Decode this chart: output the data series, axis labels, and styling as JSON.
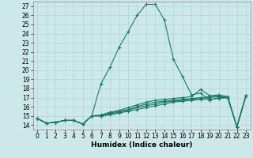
{
  "xlabel": "Humidex (Indice chaleur)",
  "xlim": [
    -0.5,
    23.5
  ],
  "ylim": [
    13.5,
    27.5
  ],
  "yticks": [
    14,
    15,
    16,
    17,
    18,
    19,
    20,
    21,
    22,
    23,
    24,
    25,
    26,
    27
  ],
  "xticks": [
    0,
    1,
    2,
    3,
    4,
    5,
    6,
    7,
    8,
    9,
    10,
    11,
    12,
    13,
    14,
    15,
    16,
    17,
    18,
    19,
    20,
    21,
    22,
    23
  ],
  "line_color": "#1a7a6a",
  "bg_color": "#cce8e8",
  "grid_color": "#b0d4d4",
  "series": [
    [
      14.7,
      14.2,
      14.3,
      14.5,
      14.5,
      14.1,
      15.0,
      18.5,
      20.3,
      22.5,
      24.2,
      26.0,
      27.2,
      27.2,
      25.5,
      21.2,
      19.3,
      17.3,
      17.5,
      16.7,
      17.0,
      17.0,
      13.8,
      17.2
    ],
    [
      14.7,
      14.2,
      14.3,
      14.5,
      14.5,
      14.1,
      15.0,
      15.0,
      15.1,
      15.3,
      15.5,
      15.7,
      15.9,
      16.1,
      16.3,
      16.5,
      16.6,
      16.7,
      16.8,
      16.8,
      16.9,
      17.0,
      13.8,
      17.2
    ],
    [
      14.7,
      14.2,
      14.3,
      14.5,
      14.5,
      14.1,
      15.0,
      15.0,
      15.2,
      15.4,
      15.6,
      15.9,
      16.1,
      16.3,
      16.5,
      16.6,
      16.7,
      16.8,
      16.9,
      17.0,
      17.1,
      17.0,
      13.8,
      17.2
    ],
    [
      14.7,
      14.2,
      14.3,
      14.5,
      14.5,
      14.1,
      15.0,
      15.0,
      15.3,
      15.5,
      15.7,
      16.0,
      16.3,
      16.5,
      16.6,
      16.7,
      16.8,
      16.9,
      17.0,
      17.1,
      17.2,
      17.0,
      13.8,
      17.2
    ],
    [
      14.7,
      14.2,
      14.3,
      14.5,
      14.5,
      14.1,
      15.0,
      15.1,
      15.4,
      15.6,
      15.9,
      16.2,
      16.5,
      16.7,
      16.8,
      16.9,
      17.0,
      17.1,
      17.9,
      17.2,
      17.3,
      17.1,
      13.8,
      17.2
    ]
  ],
  "marker": "+",
  "markersize": 3,
  "linewidth": 0.8,
  "tick_fontsize": 5.5,
  "xlabel_fontsize": 6.5
}
